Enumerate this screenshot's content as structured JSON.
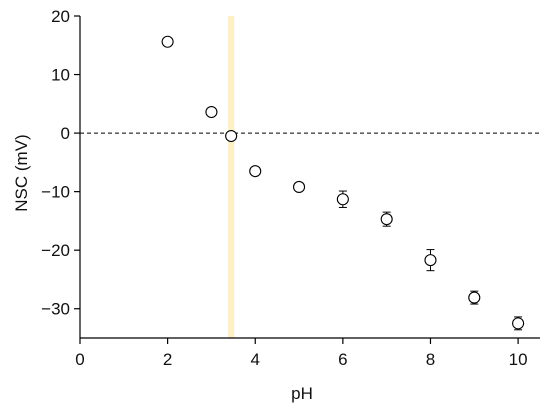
{
  "chart_data": {
    "type": "scatter",
    "title": "",
    "xlabel": "pH",
    "ylabel": "NSC (mV)",
    "xlim": [
      0,
      10.5
    ],
    "ylim": [
      -35,
      20
    ],
    "x_ticks": [
      0,
      2,
      4,
      6,
      8,
      10
    ],
    "x_tick_labels": [
      "0",
      "2",
      "4",
      "6",
      "8",
      "10"
    ],
    "y_ticks": [
      20,
      10,
      0,
      -10,
      -20,
      -30
    ],
    "y_tick_labels": [
      "20",
      "10",
      "0",
      "−10",
      "−20",
      "−30"
    ],
    "grid": false,
    "legend": "none",
    "reference_line": {
      "y": 0,
      "style": "dashed",
      "color": "#000000"
    },
    "highlight_band": {
      "x": [
        3.38,
        3.52
      ],
      "color": "#fdf0c4"
    },
    "series": [
      {
        "marker": "open-circle",
        "color": "#000000",
        "points": [
          {
            "x": 2.0,
            "y": 15.6,
            "err": 0.3
          },
          {
            "x": 3.0,
            "y": 3.6,
            "err": 0.3
          },
          {
            "x": 3.45,
            "y": -0.5,
            "err": 0.3
          },
          {
            "x": 4.0,
            "y": -6.5,
            "err": 0.3
          },
          {
            "x": 5.0,
            "y": -9.2,
            "err": 0.4
          },
          {
            "x": 6.0,
            "y": -11.3,
            "err": 1.4
          },
          {
            "x": 7.0,
            "y": -14.7,
            "err": 1.2
          },
          {
            "x": 8.0,
            "y": -21.7,
            "err": 1.8
          },
          {
            "x": 9.0,
            "y": -28.1,
            "err": 1.1
          },
          {
            "x": 10.0,
            "y": -32.5,
            "err": 1.1
          }
        ]
      }
    ]
  }
}
